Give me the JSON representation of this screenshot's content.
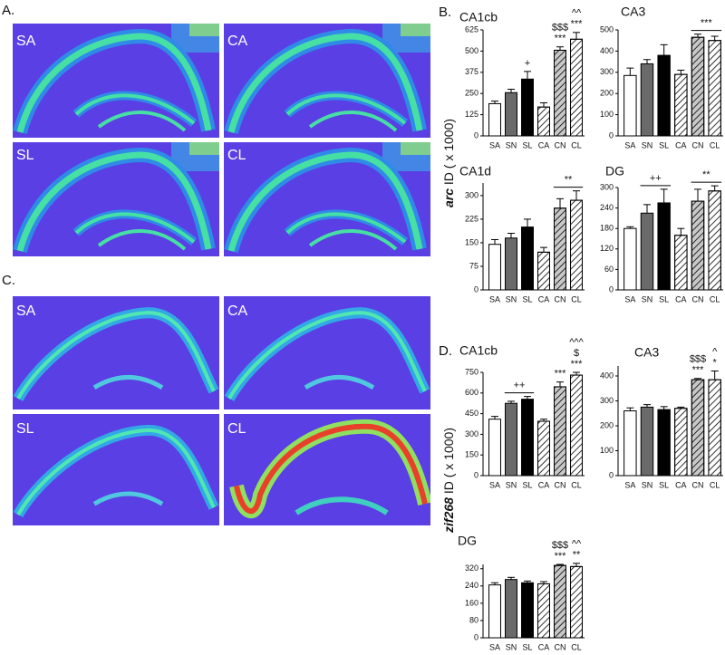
{
  "image_panels": [
    {
      "label": "A.",
      "tiles": [
        "SA",
        "CA",
        "SL",
        "CL"
      ]
    },
    {
      "label": "C.",
      "tiles": [
        "SA",
        "CA",
        "SL",
        "CL"
      ]
    }
  ],
  "chart_panels": [
    {
      "label": "B.",
      "y_label_gene": "arc",
      "y_label": "ID ( x 1000)"
    },
    {
      "label": "D.",
      "y_label_gene": "zif268",
      "y_label": "ID ( x 1000)"
    }
  ],
  "chart_data": [
    {
      "type": "bar",
      "title": "CA1cb",
      "categories": [
        "SA",
        "SN",
        "SL",
        "CA",
        "CN",
        "CL"
      ],
      "values": [
        190,
        255,
        335,
        170,
        505,
        570
      ],
      "errors": [
        15,
        20,
        45,
        25,
        20,
        40
      ],
      "colors": [
        "#ffffff",
        "#6a6a6a",
        "#000000",
        "#ffffff",
        "#c8c8c8",
        "#ffffff"
      ],
      "hatched": [
        false,
        false,
        false,
        true,
        true,
        true
      ],
      "ylim": [
        0,
        625
      ],
      "yticks": [
        0,
        125,
        250,
        375,
        500,
        625
      ],
      "annotations": [
        {
          "categories": [
            "SL"
          ],
          "labels": [
            "+"
          ]
        },
        {
          "categories": [
            "CN"
          ],
          "labels": [
            "***",
            "$$$"
          ]
        },
        {
          "categories": [
            "CL"
          ],
          "labels": [
            "***",
            "^^"
          ]
        }
      ]
    },
    {
      "type": "bar",
      "title": "CA3",
      "categories": [
        "SA",
        "SN",
        "SL",
        "CA",
        "CN",
        "CL"
      ],
      "values": [
        285,
        340,
        380,
        290,
        465,
        450
      ],
      "errors": [
        35,
        20,
        50,
        20,
        15,
        20
      ],
      "colors": [
        "#ffffff",
        "#6a6a6a",
        "#000000",
        "#ffffff",
        "#c8c8c8",
        "#ffffff"
      ],
      "hatched": [
        false,
        false,
        false,
        true,
        true,
        true
      ],
      "ylim": [
        0,
        500
      ],
      "yticks": [
        0,
        100,
        200,
        300,
        400,
        500
      ],
      "annotations": [
        {
          "categories": [
            "CN",
            "CL"
          ],
          "labels": [
            "***"
          ]
        }
      ]
    },
    {
      "type": "bar",
      "title": "CA1d",
      "categories": [
        "SA",
        "SN",
        "SL",
        "CA",
        "CN",
        "CL"
      ],
      "values": [
        145,
        165,
        200,
        120,
        260,
        285
      ],
      "errors": [
        15,
        15,
        25,
        15,
        30,
        30
      ],
      "colors": [
        "#ffffff",
        "#6a6a6a",
        "#000000",
        "#ffffff",
        "#c8c8c8",
        "#ffffff"
      ],
      "hatched": [
        false,
        false,
        false,
        true,
        true,
        true
      ],
      "ylim": [
        0,
        340
      ],
      "yticks": [
        0,
        75,
        150,
        225,
        300
      ],
      "annotations": [
        {
          "categories": [
            "CN",
            "CL"
          ],
          "labels": [
            "**"
          ]
        }
      ]
    },
    {
      "type": "bar",
      "title": "DG",
      "categories": [
        "SA",
        "SN",
        "SL",
        "CA",
        "CN",
        "CL"
      ],
      "values": [
        180,
        225,
        255,
        160,
        260,
        290
      ],
      "errors": [
        5,
        25,
        40,
        20,
        35,
        15
      ],
      "colors": [
        "#ffffff",
        "#6a6a6a",
        "#000000",
        "#ffffff",
        "#c8c8c8",
        "#ffffff"
      ],
      "hatched": [
        false,
        false,
        false,
        true,
        true,
        true
      ],
      "ylim": [
        0,
        300
      ],
      "yticks": [
        0,
        60,
        120,
        180,
        240,
        300
      ],
      "annotations": [
        {
          "categories": [
            "SN",
            "SL"
          ],
          "labels": [
            "++"
          ]
        },
        {
          "categories": [
            "CN",
            "CL"
          ],
          "labels": [
            "**"
          ]
        }
      ]
    },
    {
      "type": "bar",
      "title": "CA1cb",
      "categories": [
        "SA",
        "SN",
        "SL",
        "CA",
        "CN",
        "CL"
      ],
      "values": [
        410,
        525,
        555,
        395,
        645,
        730
      ],
      "errors": [
        20,
        15,
        20,
        15,
        35,
        20
      ],
      "colors": [
        "#ffffff",
        "#6a6a6a",
        "#000000",
        "#ffffff",
        "#c8c8c8",
        "#ffffff"
      ],
      "hatched": [
        false,
        false,
        false,
        true,
        true,
        true
      ],
      "ylim": [
        0,
        750
      ],
      "yticks": [
        0,
        150,
        300,
        450,
        600,
        750
      ],
      "annotations": [
        {
          "categories": [
            "SN",
            "SL"
          ],
          "labels": [
            "++"
          ]
        },
        {
          "categories": [
            "CN"
          ],
          "labels": [
            "***"
          ]
        },
        {
          "categories": [
            "CL"
          ],
          "labels": [
            "***",
            "$"
          ]
        },
        {
          "categories": [
            "CL"
          ],
          "labels": [
            "^^^"
          ]
        }
      ]
    },
    {
      "type": "bar",
      "title": "CA3",
      "categories": [
        "SA",
        "SN",
        "SL",
        "CA",
        "CN",
        "CL"
      ],
      "values": [
        260,
        275,
        265,
        270,
        385,
        385
      ],
      "errors": [
        12,
        10,
        12,
        5,
        5,
        35
      ],
      "colors": [
        "#ffffff",
        "#6a6a6a",
        "#000000",
        "#ffffff",
        "#c8c8c8",
        "#ffffff"
      ],
      "hatched": [
        false,
        false,
        false,
        true,
        true,
        true
      ],
      "ylim": [
        0,
        440
      ],
      "yticks": [
        0,
        100,
        200,
        300,
        400
      ],
      "annotations": [
        {
          "categories": [
            "CN"
          ],
          "labels": [
            "***",
            "$$$"
          ]
        },
        {
          "categories": [
            "CL"
          ],
          "labels": [
            "*",
            "^"
          ]
        }
      ]
    },
    {
      "type": "bar",
      "title": "DG",
      "categories": [
        "SA",
        "SN",
        "SL",
        "CA",
        "CN",
        "CL"
      ],
      "values": [
        245,
        270,
        255,
        250,
        335,
        330
      ],
      "errors": [
        10,
        10,
        8,
        10,
        5,
        15
      ],
      "colors": [
        "#ffffff",
        "#6a6a6a",
        "#000000",
        "#ffffff",
        "#c8c8c8",
        "#ffffff"
      ],
      "hatched": [
        false,
        false,
        false,
        true,
        true,
        true
      ],
      "ylim": [
        0,
        340
      ],
      "yticks": [
        0,
        80,
        160,
        240,
        320
      ],
      "annotations": [
        {
          "categories": [
            "CN"
          ],
          "labels": [
            "***",
            "$$$"
          ]
        },
        {
          "categories": [
            "CL"
          ],
          "labels": [
            "**",
            "^^"
          ]
        }
      ]
    }
  ]
}
